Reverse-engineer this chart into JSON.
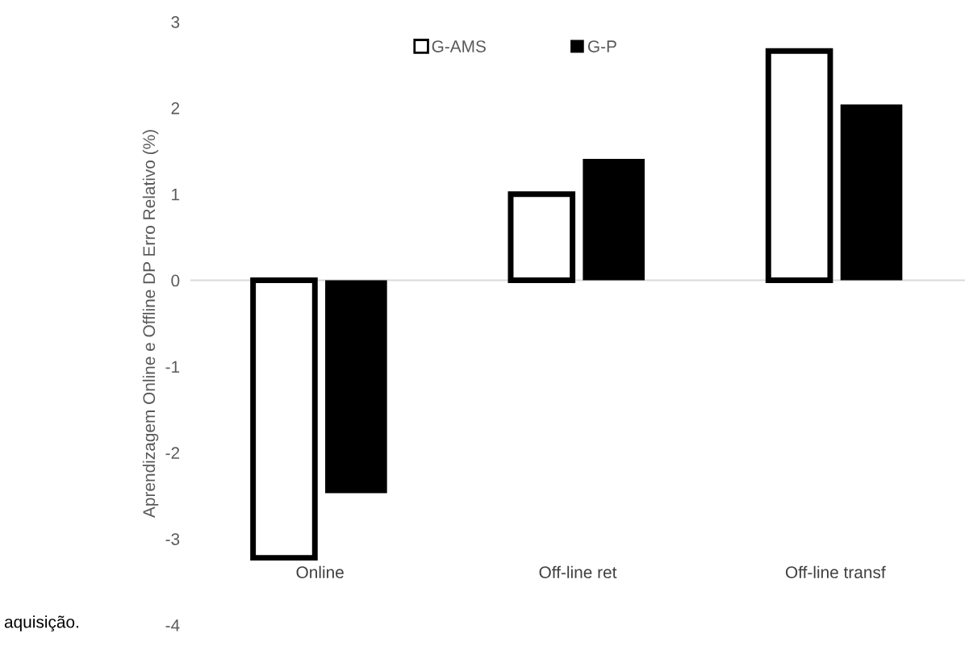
{
  "chart_data": {
    "type": "bar",
    "ylabel": "Aprendizagem Online e Offline DP Erro Relativo (%)",
    "categories": [
      "Online",
      "Off-line ret",
      "Off-line transf"
    ],
    "series": [
      {
        "name": "G-AMS",
        "color": "#ffffff",
        "values": [
          -3.22,
          1.0,
          2.66
        ]
      },
      {
        "name": "G-P",
        "color": "#000000",
        "values": [
          -2.47,
          1.41,
          2.04
        ]
      }
    ],
    "ylim": [
      -4,
      3
    ],
    "yticks": [
      -4,
      -3,
      -2,
      -1,
      0,
      1,
      2,
      3
    ],
    "legend": "top",
    "annotations": [
      "aquisição."
    ]
  }
}
